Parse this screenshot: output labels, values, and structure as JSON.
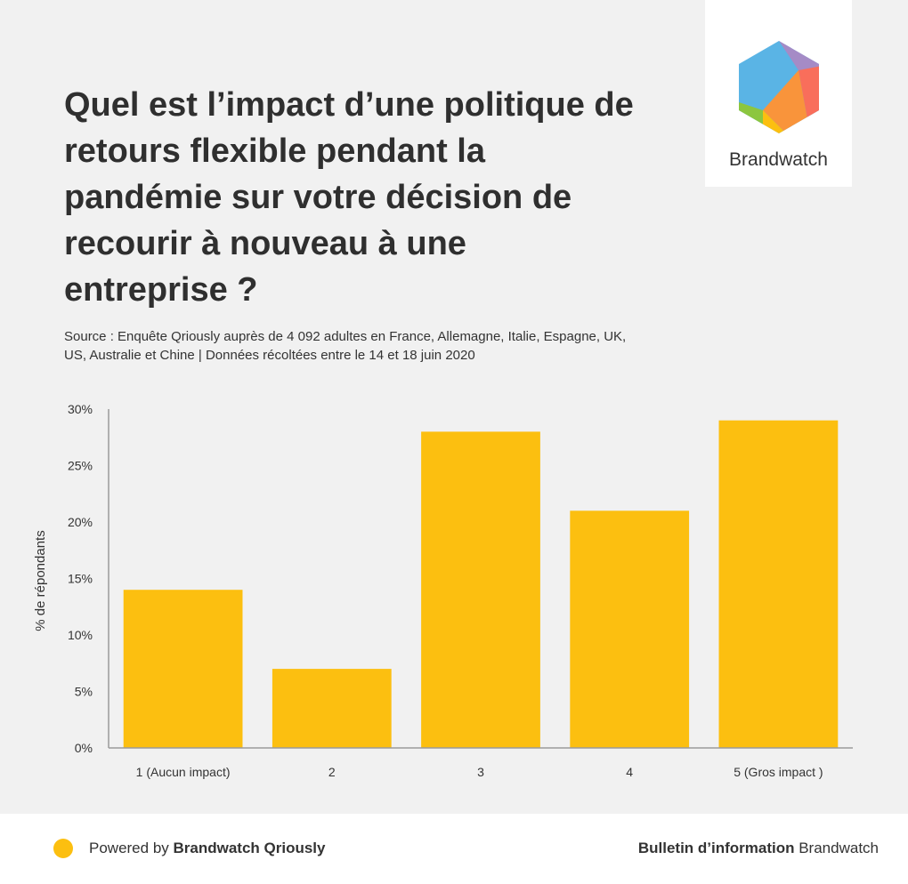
{
  "header": {
    "title": "Quel est l’impact d’une politique de retours flexible pendant la pandémie sur votre décision de recourir à nouveau à une entreprise ?",
    "source": "Source : Enquête Qriously auprès de 4 092 adultes en France, Allemagne, Italie, Espagne, UK, US, Australie et Chine | Données récoltées entre le 14 et 18 juin 2020"
  },
  "logo": {
    "text": "Brandwatch",
    "icon": "brandwatch-hexagon-icon"
  },
  "chart_data": {
    "type": "bar",
    "categories": [
      "1 (Aucun impact)",
      "2",
      "3",
      "4",
      "5 (Gros impact )"
    ],
    "values": [
      14,
      7,
      28,
      21,
      29
    ],
    "unit": "%",
    "xlabel": "",
    "ylabel": "% de répondants",
    "ylim": [
      0,
      30
    ],
    "yticks": [
      0,
      5,
      10,
      15,
      20,
      25,
      30
    ],
    "ytick_labels": [
      "0%",
      "5%",
      "10%",
      "15%",
      "20%",
      "25%",
      "30%"
    ],
    "bar_color": "#fcbf10",
    "grid": false,
    "legend": "none"
  },
  "footer": {
    "powered_prefix": "Powered by ",
    "powered_brand": "Brandwatch Qriously",
    "bulletin_bold": "Bulletin d’information",
    "bulletin_rest": " Brandwatch",
    "dot_color": "#fcbf10"
  }
}
